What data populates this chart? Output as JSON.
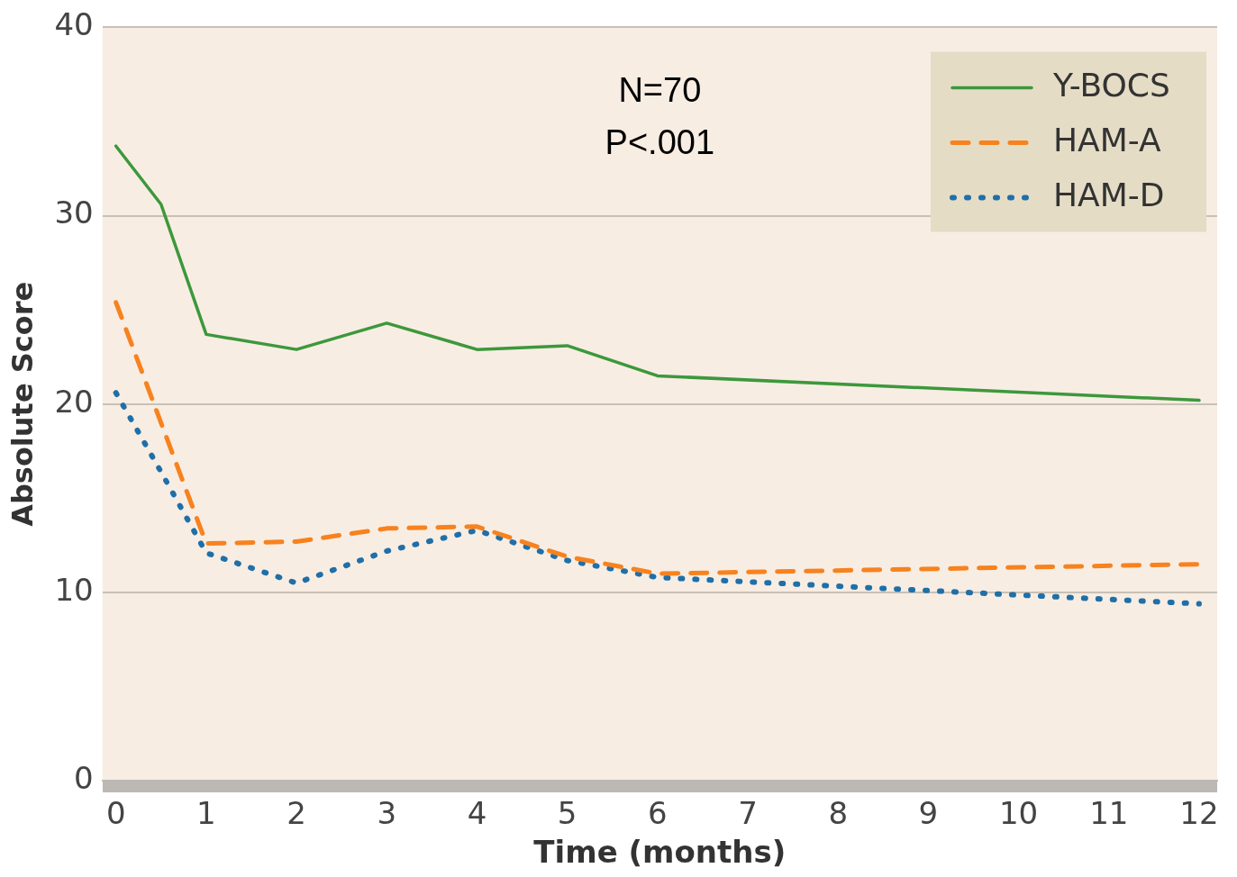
{
  "chart_data": {
    "type": "line",
    "xlabel": "Time (months)",
    "ylabel": "Absolute Score",
    "annotations": [
      "N=70",
      "P<.001"
    ],
    "xlim": [
      -0.15,
      12.2
    ],
    "xticks": [
      0,
      1,
      2,
      3,
      4,
      5,
      6,
      7,
      8,
      9,
      10,
      11,
      12
    ],
    "ylim": [
      0,
      40
    ],
    "yticks": [
      0,
      10,
      20,
      30,
      40
    ],
    "grid": "y",
    "legend": "top right",
    "marker": "none",
    "series": [
      {
        "name": "Y-BOCS",
        "color": "#3c983c",
        "line_style": "solid",
        "x": [
          0,
          0.5,
          1,
          2,
          3,
          4,
          5,
          6,
          12
        ],
        "values": [
          33.7,
          30.6,
          23.7,
          22.9,
          24.3,
          22.9,
          23.1,
          21.5,
          20.2
        ]
      },
      {
        "name": "HAM-A",
        "color": "#f7821e",
        "line_style": "dashed",
        "x": [
          0,
          1,
          2,
          3,
          4,
          5,
          6,
          12
        ],
        "values": [
          25.4,
          12.6,
          12.7,
          13.4,
          13.5,
          11.9,
          11.0,
          11.5
        ]
      },
      {
        "name": "HAM-D",
        "color": "#1f6fa8",
        "line_style": "dotted",
        "x": [
          0,
          0.5,
          1,
          2,
          3,
          4,
          5,
          6,
          12
        ],
        "values": [
          20.6,
          16.4,
          12.1,
          10.5,
          12.2,
          13.3,
          11.7,
          10.8,
          9.4
        ]
      }
    ]
  }
}
